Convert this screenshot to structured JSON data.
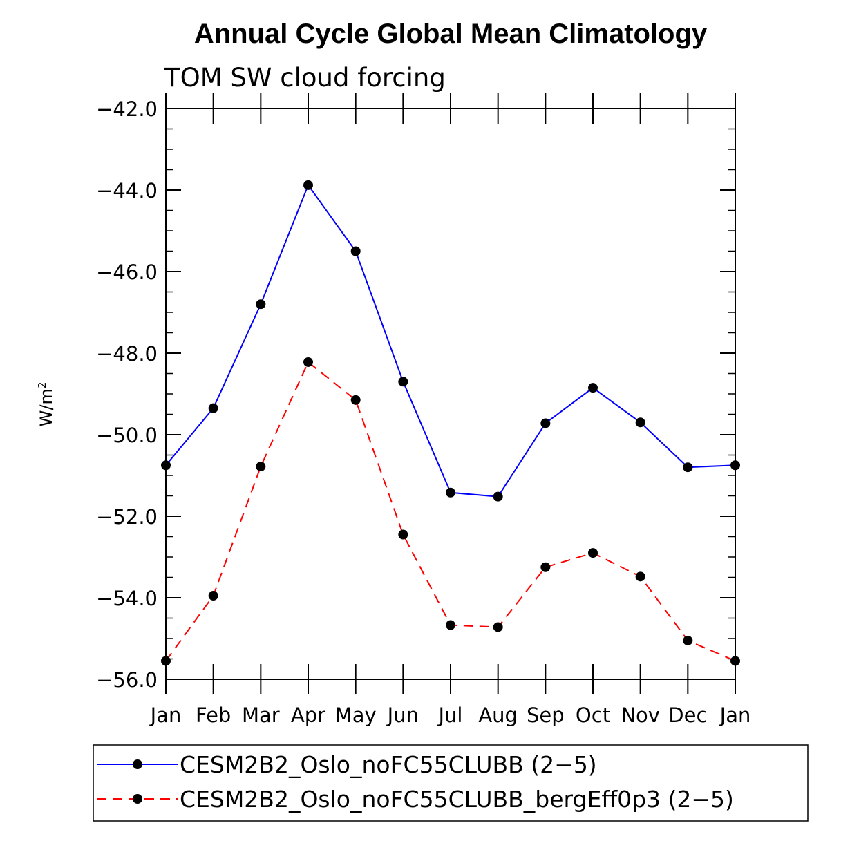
{
  "chart_data": {
    "type": "line",
    "title": "Annual Cycle Global Mean Climatology",
    "subtitle": "TOM SW cloud forcing",
    "ylabel": "W/m",
    "ylabel_sup": "2",
    "xlabel": "",
    "categories": [
      "Jan",
      "Feb",
      "Mar",
      "Apr",
      "May",
      "Jun",
      "Jul",
      "Aug",
      "Sep",
      "Oct",
      "Nov",
      "Dec",
      "Jan"
    ],
    "ylim": [
      -56.0,
      -42.0
    ],
    "yticks": [
      "-42.0",
      "-44.0",
      "-46.0",
      "-48.0",
      "-50.0",
      "-52.0",
      "-54.0",
      "-56.0"
    ],
    "ytick_values": [
      -42,
      -44,
      -46,
      -48,
      -50,
      -52,
      -54,
      -56
    ],
    "series": [
      {
        "name": "CESM2B2_Oslo_noFC55CLUBB (2-5)",
        "color": "#0000ff",
        "dash": "solid",
        "values": [
          -50.75,
          -49.35,
          -46.8,
          -43.88,
          -45.5,
          -48.7,
          -51.42,
          -51.52,
          -49.72,
          -48.85,
          -49.7,
          -50.8,
          -50.75
        ]
      },
      {
        "name": "CESM2B2_Oslo_noFC55CLUBB_bergEff0p3 (2-5)",
        "color": "#ff0000",
        "dash": "dashed",
        "values": [
          -55.55,
          -53.95,
          -50.78,
          -48.22,
          -49.15,
          -52.45,
          -54.67,
          -54.72,
          -53.25,
          -52.9,
          -53.48,
          -55.05,
          -55.55
        ]
      }
    ],
    "marker_color": "#000000",
    "legend_position": "bottom"
  }
}
